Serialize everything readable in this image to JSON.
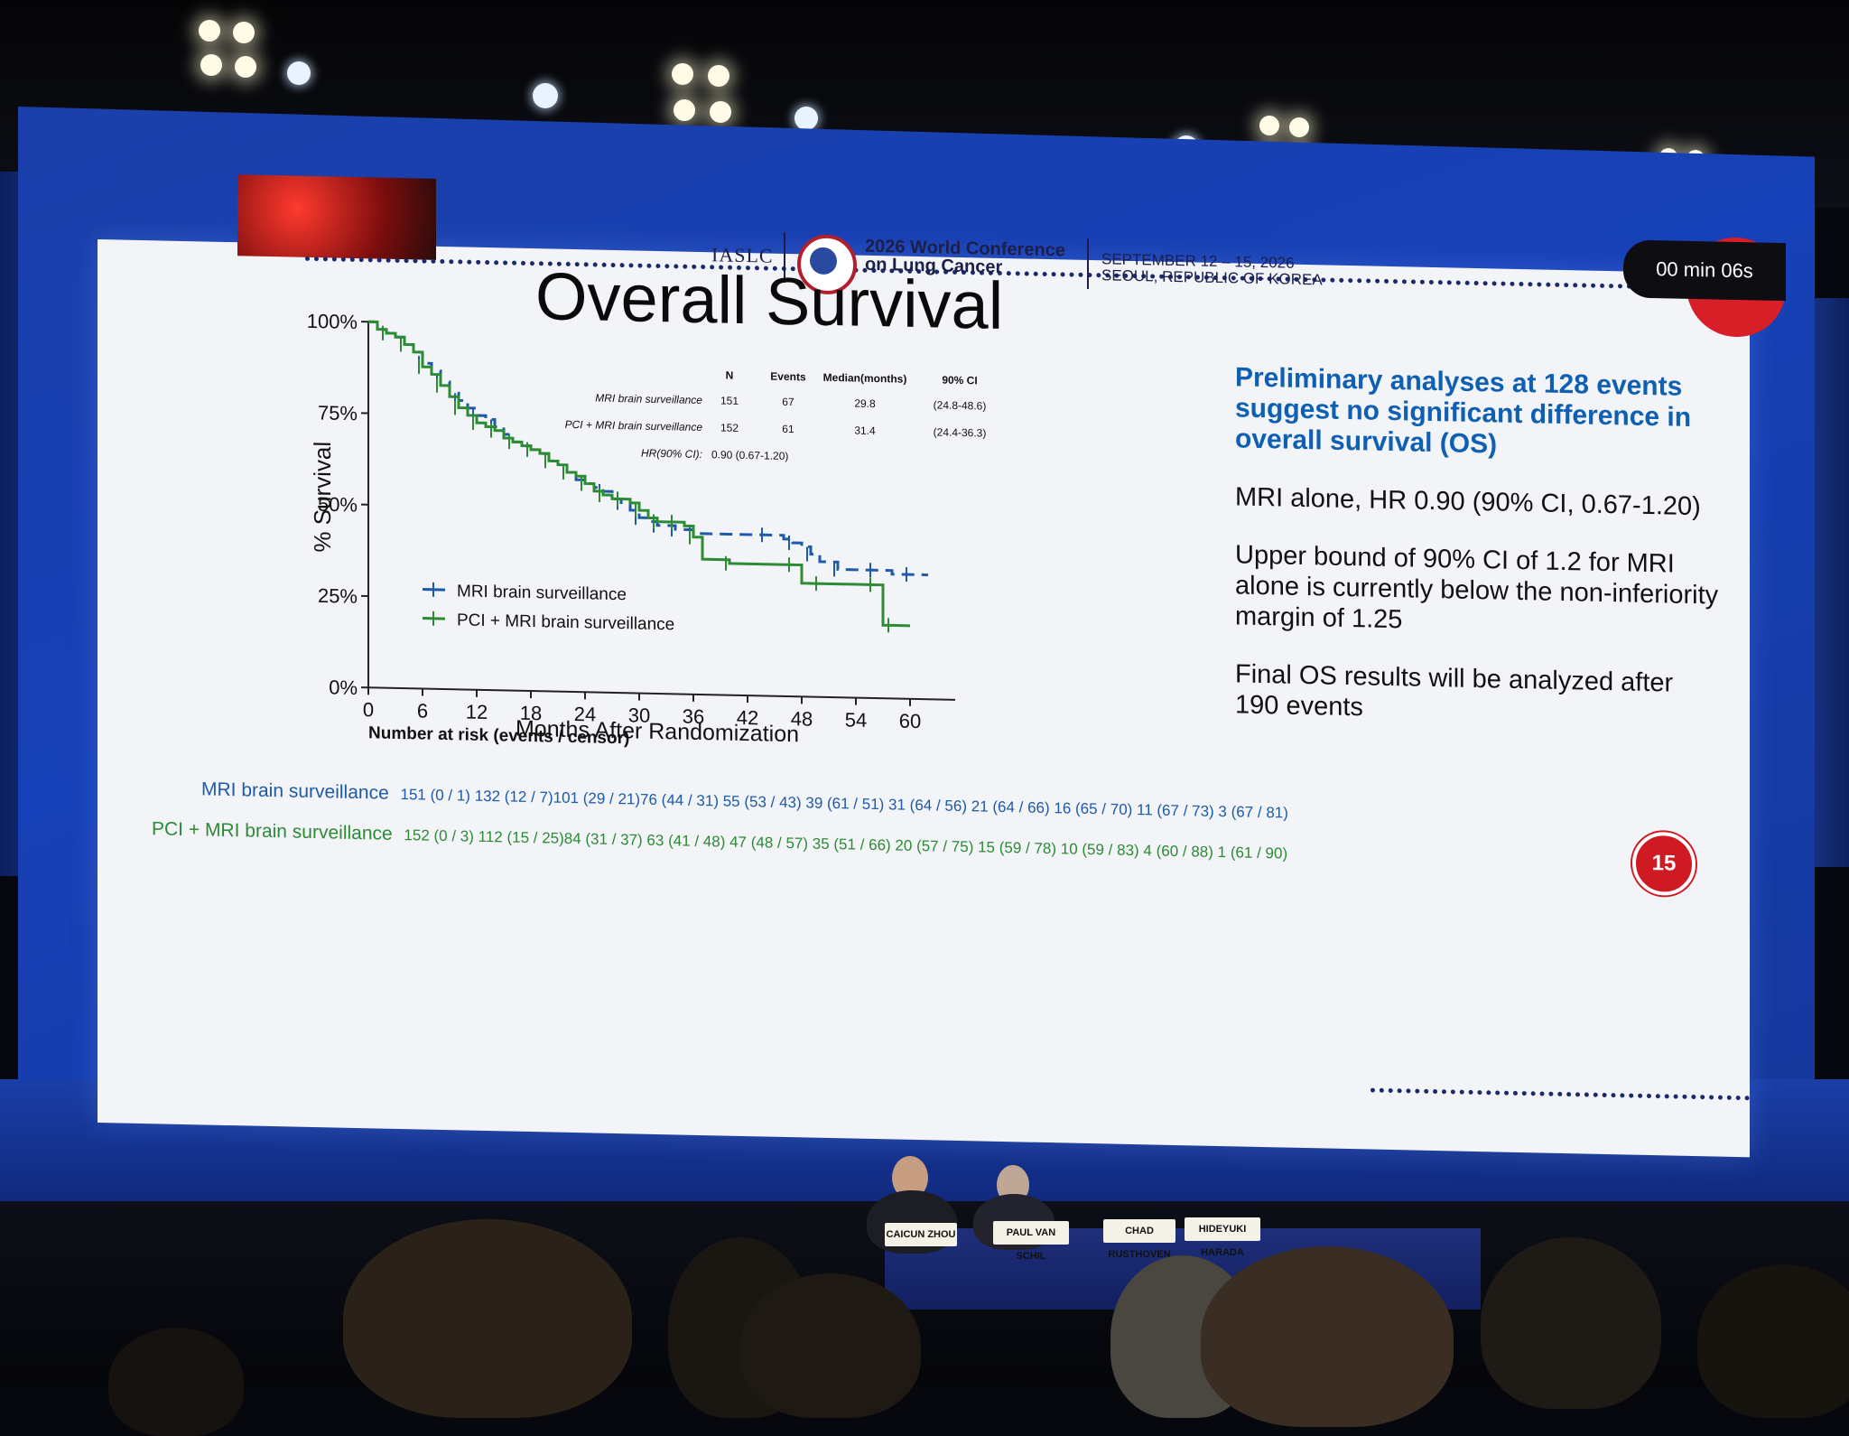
{
  "conference": {
    "org": "IASLC",
    "title_line1": "2026 World Conference",
    "title_line2": "on Lung Cancer",
    "dates": "SEPTEMBER 12 – 15, 2026",
    "location": "SEOUL, REPUBLIC OF KOREA"
  },
  "timer": "00 min 06s",
  "slide": {
    "title": "Overall Survival",
    "number": "15"
  },
  "chart_data": {
    "type": "line",
    "ylabel": "% Survival",
    "xlabel": "Months After Randomization",
    "x_ticks": [
      "0",
      "6",
      "12",
      "18",
      "24",
      "30",
      "36",
      "42",
      "48",
      "54",
      "60"
    ],
    "y_ticks": [
      "0%",
      "25%",
      "50%",
      "75%",
      "100%"
    ],
    "xlim": [
      0,
      63
    ],
    "ylim": [
      0,
      100
    ],
    "legend": [
      "MRI brain surveillance",
      "PCI + MRI brain surveillance"
    ],
    "legend_position": "bottom-left",
    "series": [
      {
        "name": "MRI brain surveillance",
        "color": "#1e5aa8",
        "style": "dashed",
        "x": [
          0,
          1,
          2,
          3,
          4,
          5,
          6,
          7,
          8,
          9,
          10,
          11,
          12,
          13,
          14,
          15,
          16,
          17,
          18,
          19,
          20,
          21,
          22,
          23,
          24,
          25,
          26,
          27,
          28,
          29,
          30,
          31,
          32,
          33,
          34,
          35,
          36,
          40,
          44,
          46,
          47,
          48,
          49,
          50,
          52,
          54,
          56,
          58,
          60,
          62
        ],
        "y": [
          100,
          98,
          97,
          96,
          94,
          92,
          89,
          87,
          84,
          81,
          79,
          77,
          75,
          74,
          72,
          70,
          68,
          67,
          66,
          65,
          63,
          62,
          60,
          58,
          57,
          56,
          55,
          53,
          52,
          50,
          48,
          47,
          46,
          46,
          45,
          45,
          44,
          44,
          44,
          43,
          42,
          41,
          39,
          37,
          35,
          35,
          35,
          34,
          34,
          34
        ]
      },
      {
        "name": "PCI + MRI brain surveillance",
        "color": "#2d8a35",
        "style": "solid",
        "x": [
          0,
          1,
          2,
          3,
          4,
          5,
          6,
          7,
          8,
          9,
          10,
          11,
          12,
          13,
          14,
          15,
          16,
          17,
          18,
          19,
          20,
          21,
          22,
          23,
          24,
          25,
          26,
          27,
          28,
          29,
          30,
          31,
          32,
          33,
          34,
          35,
          36,
          37,
          40,
          44,
          47,
          48,
          50,
          54,
          56,
          57,
          58,
          60
        ],
        "y": [
          100,
          98,
          97,
          96,
          94,
          92,
          88,
          86,
          83,
          80,
          77,
          75,
          73,
          72,
          71,
          69,
          68,
          67,
          66,
          65,
          63,
          62,
          60,
          59,
          57,
          55,
          54,
          53,
          53,
          52,
          50,
          48,
          47,
          47,
          47,
          46,
          43,
          37,
          36,
          36,
          36,
          31,
          31,
          31,
          31,
          20,
          20,
          20
        ]
      }
    ],
    "table": {
      "headers": [
        "N",
        "Events",
        "Median(months)",
        "90% CI"
      ],
      "rows": [
        [
          "MRI brain surveillance",
          "151",
          "67",
          "29.8",
          "(24.8-48.6)"
        ],
        [
          "PCI + MRI brain surveillance",
          "152",
          "61",
          "31.4",
          "(24.4-36.3)"
        ]
      ],
      "hr_label": "HR(90% CI):",
      "hr_value": "0.90 (0.67-1.20)"
    }
  },
  "right_panel": {
    "heading": "Preliminary analyses at 128 events suggest no significant difference in overall survival (OS)",
    "p1": "MRI alone, HR 0.90 (90% CI, 0.67-1.20)",
    "p2": "Upper bound of 90% CI of 1.2 for MRI alone is currently below the non-inferiority margin of 1.25",
    "p3": "Final OS results will be analyzed after 190 events"
  },
  "risk_table": {
    "heading": "Number at risk (events / censor)",
    "mri_label": "MRI brain surveillance",
    "mri_values": "151 (0 / 1)   132 (12 / 7)101 (29 / 21)76 (44 / 31) 55 (53 / 43) 39 (61 / 51) 31 (64 / 56) 21 (64 / 66) 16 (65 / 70) 11 (67 / 73)  3 (67 / 81)",
    "pci_label": "PCI + MRI brain surveillance",
    "pci_values": "152 (0 / 3) 112 (15 / 25)84 (31 / 37) 63 (41 / 48) 47 (48 / 57) 35 (51 / 66) 20 (57 / 75) 15 (59 / 78) 10 (59 / 83)  4 (60 / 88)   1 (61 / 90)"
  },
  "nameplates": [
    "CAICUN ZHOU",
    "PAUL VAN SCHIL",
    "CHAD RUSTHOVEN",
    "HIDEYUKI HARADA"
  ]
}
